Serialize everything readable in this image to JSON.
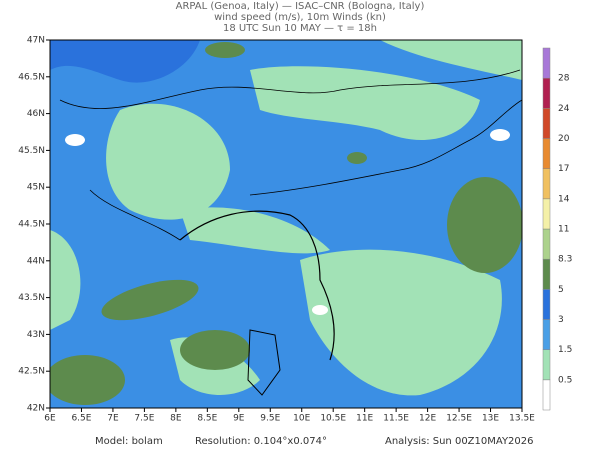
{
  "header": {
    "lines": [
      "ARPAL (Genoa, Italy)  —  ISAC–CNR (Bologna, Italy)",
      "wind speed (m/s), 10m Winds (kn)",
      "18 UTC Sun 10 MAY  —  τ = 18h"
    ]
  },
  "map": {
    "xticks": [
      "6E",
      "6.5E",
      "7E",
      "7.5E",
      "8E",
      "8.5E",
      "9E",
      "9.5E",
      "10E",
      "10.5E",
      "11E",
      "11.5E",
      "12E",
      "12.5E",
      "13E",
      "13.5E"
    ],
    "yticks": [
      "47N",
      "46.5N",
      "46N",
      "45.5N",
      "45N",
      "44.5N",
      "44N",
      "43.5N",
      "43N",
      "42.5N",
      "42N"
    ]
  },
  "colorbar": {
    "labels": [
      "0.5",
      "1.5",
      "3",
      "5",
      "8.3",
      "11",
      "14",
      "17",
      "20",
      "24",
      "28"
    ],
    "colors": [
      "#ffffff",
      "#a2e2b6",
      "#4a9fe6",
      "#2a72dc",
      "#5d8b4d",
      "#acd28c",
      "#f4f0a8",
      "#f0c060",
      "#e88a30",
      "#d04828",
      "#b02050",
      "#a878d8"
    ]
  },
  "footer": {
    "model": "Model: bolam",
    "resolution": "Resolution: 0.104°x0.074°",
    "analysis": "Analysis: Sun 00Z10MAY2026"
  }
}
